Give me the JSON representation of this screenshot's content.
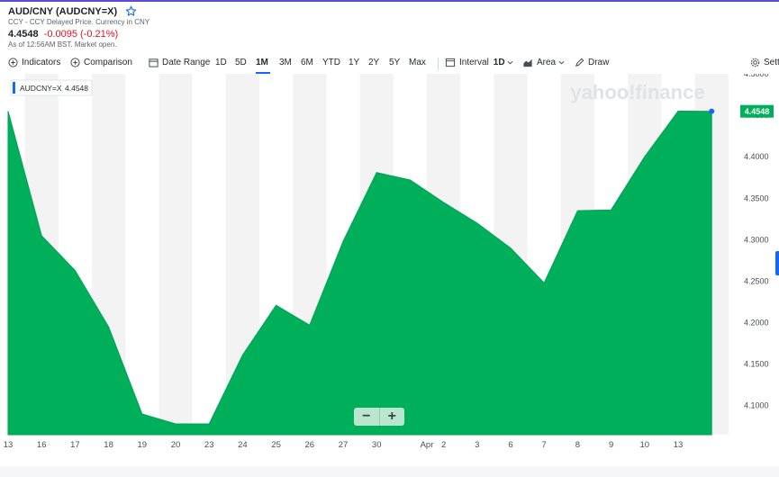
{
  "header": {
    "title": "AUD/CNY (AUDCNY=X)",
    "subtitle": "CCY - CCY Delayed Price. Currency in CNY",
    "price": "4.4548",
    "change": "-0.0095 (-0.21%)",
    "as_of": "As of 12:56AM BST. Market open."
  },
  "toolbar": {
    "indicators": "Indicators",
    "comparison": "Comparison",
    "date_range": "Date Range",
    "periods": [
      "1D",
      "5D",
      "1M",
      "3M",
      "6M",
      "YTD",
      "1Y",
      "2Y",
      "5Y",
      "Max"
    ],
    "active_period": "1M",
    "interval_label": "Interval",
    "interval_value": "1D",
    "chart_type": "Area",
    "draw": "Draw",
    "settings": "Sett"
  },
  "watermark": "yahoo!finance",
  "tooltip": {
    "symbol": "AUDCNY=X",
    "value": "4.4548"
  },
  "colors": {
    "area": "#00af5a",
    "area_stroke": "#00a355",
    "band": "#f3f3f3",
    "accent": "#0f69ff",
    "down": "#eb0f29"
  },
  "chart_data": {
    "type": "area",
    "title": "",
    "xlabel": "",
    "ylabel": "",
    "x": [
      "Mar 13",
      "Mar 16",
      "Mar 17",
      "Mar 18",
      "Mar 19",
      "Mar 20",
      "Mar 23",
      "Mar 24",
      "Mar 25",
      "Mar 26",
      "Mar 27",
      "Mar 30",
      "Mar 31",
      "Apr 1",
      "Apr 2",
      "Apr 3",
      "Apr 6",
      "Apr 7",
      "Apr 8",
      "Apr 9",
      "Apr 10",
      "Apr 13"
    ],
    "tick_labels": [
      "13",
      "16",
      "17",
      "18",
      "19",
      "20",
      "23",
      "24",
      "25",
      "26",
      "27",
      "30",
      "Apr",
      "2",
      "3",
      "6",
      "7",
      "8",
      "9",
      "10",
      "13"
    ],
    "series": [
      {
        "values": [
          4.455,
          4.305,
          4.263,
          4.195,
          4.09,
          4.078,
          4.078,
          4.161,
          4.221,
          4.197,
          4.298,
          4.381,
          4.372,
          4.345,
          4.32,
          4.29,
          4.248,
          4.335,
          4.336,
          4.4,
          4.455,
          4.4548
        ]
      }
    ],
    "y_ticks": [
      "4.1000",
      "4.1500",
      "4.2000",
      "4.2500",
      "4.3000",
      "4.3500",
      "4.4000",
      "4.4500",
      "4.5000"
    ],
    "ylim": [
      4.065,
      4.5
    ],
    "grid": "alternating vertical bands",
    "y_axis_position": "right",
    "last_label": "4.4548"
  }
}
